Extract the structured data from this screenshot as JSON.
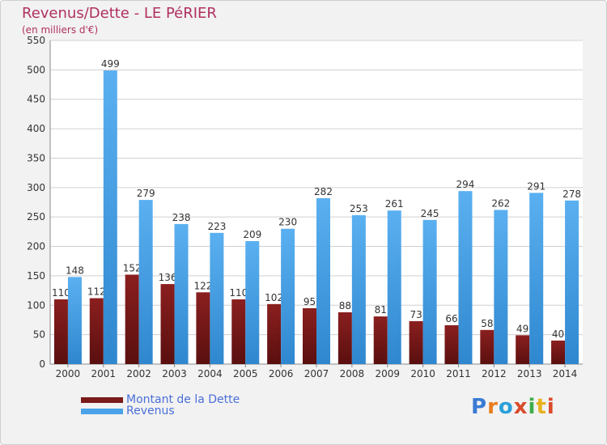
{
  "title": "Revenus/Dette - LE PéRIER",
  "subtitle": "(en milliers d'€)",
  "logo": {
    "text": "Proxiti",
    "colors": [
      "#3a7bd5",
      "#e87d1e",
      "#2aa0d8",
      "#d94a2a",
      "#3cae4a",
      "#e8b21e",
      "#d94a2a"
    ]
  },
  "colors": {
    "dette": "#7a1a1a",
    "revenus": "#4aa3e8"
  },
  "legend": [
    {
      "label": "Montant de la Dette",
      "color": "#7a1a1a"
    },
    {
      "label": "Revenus",
      "color": "#4aa3e8"
    }
  ],
  "chart_data": {
    "type": "bar",
    "categories": [
      "2000",
      "2001",
      "2002",
      "2003",
      "2004",
      "2005",
      "2006",
      "2007",
      "2008",
      "2009",
      "2010",
      "2011",
      "2012",
      "2013",
      "2014"
    ],
    "series": [
      {
        "name": "Montant de la Dette",
        "values": [
          110,
          112,
          152,
          136,
          122,
          110,
          102,
          95,
          88,
          81,
          73,
          66,
          58,
          49,
          40
        ]
      },
      {
        "name": "Revenus",
        "values": [
          148,
          499,
          279,
          238,
          223,
          209,
          230,
          282,
          253,
          261,
          245,
          294,
          262,
          291,
          278
        ]
      }
    ],
    "ylim": [
      0,
      550
    ],
    "yticks": [
      "0",
      "50",
      "100",
      "150",
      "200",
      "250",
      "300",
      "350",
      "400",
      "450",
      "500",
      "550"
    ],
    "grid": true,
    "legend_position": "bottom-left"
  }
}
